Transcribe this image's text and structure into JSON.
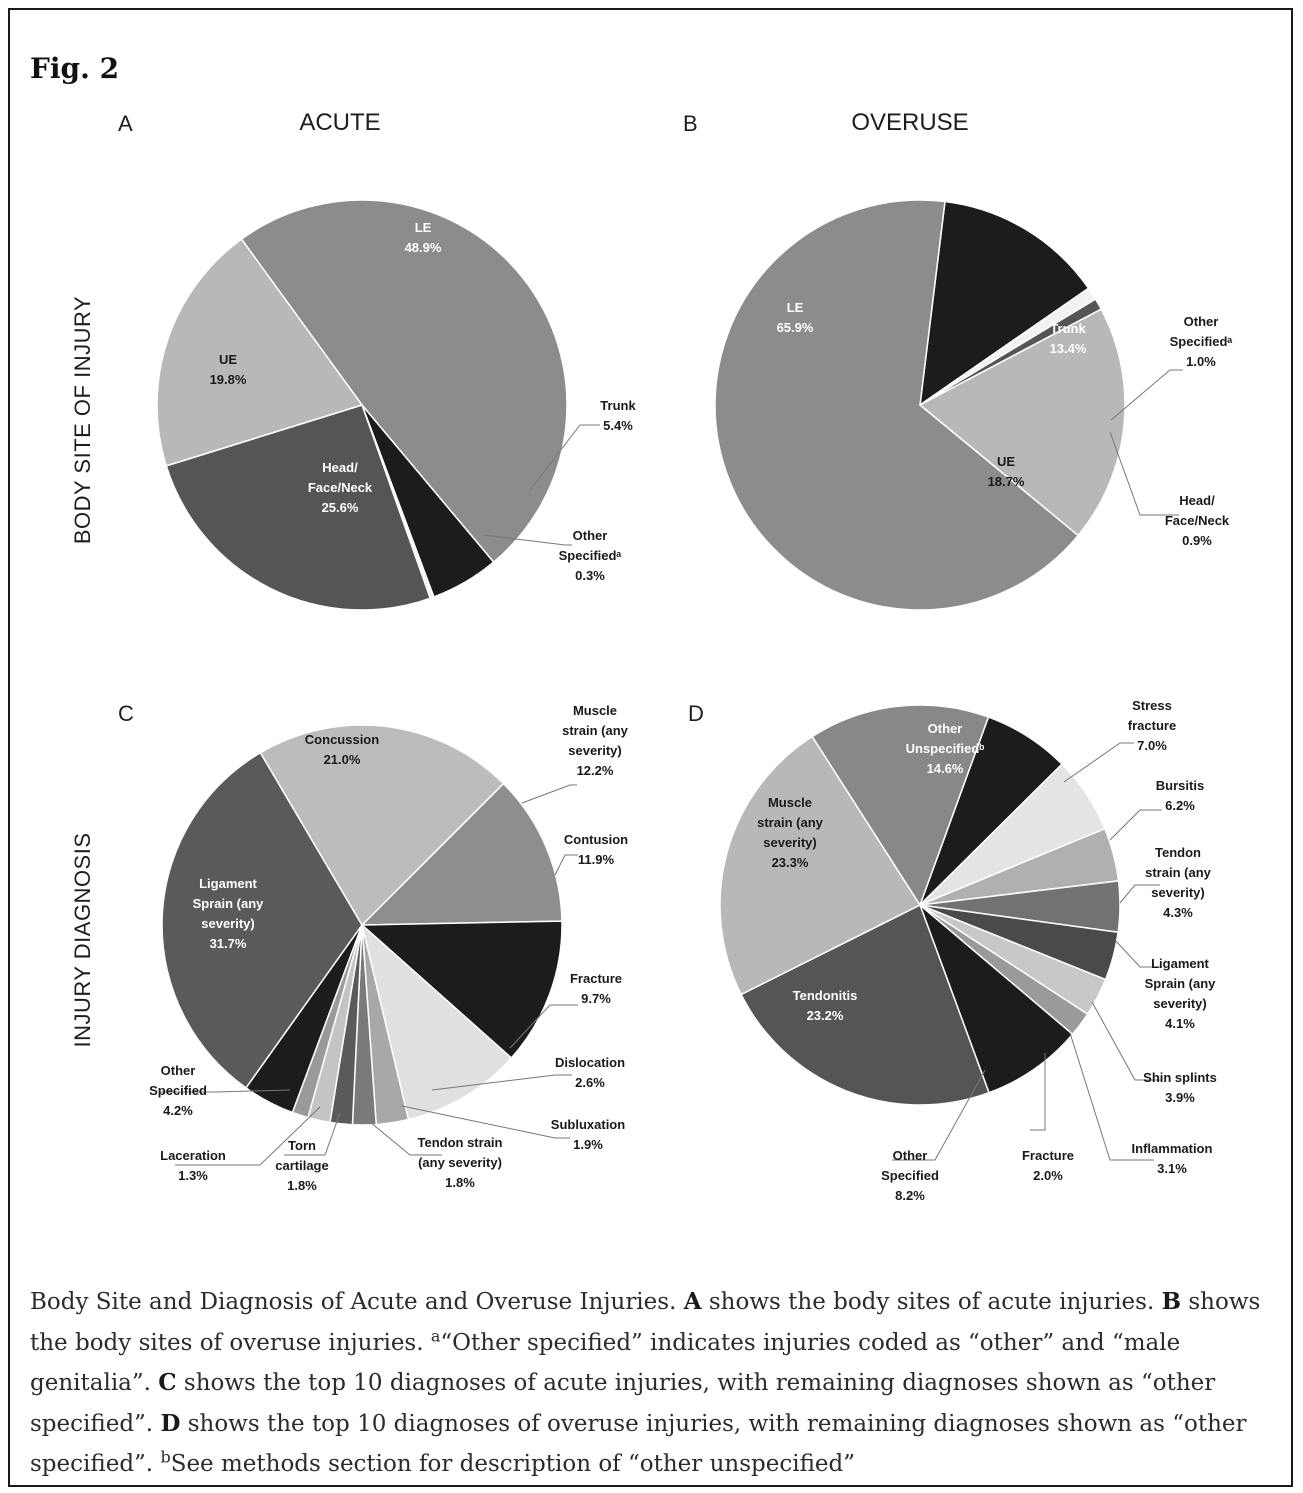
{
  "figure": {
    "title": "Fig. 2",
    "row_titles": [
      "BODY SITE OF INJURY",
      "INJURY DIAGNOSIS"
    ]
  },
  "chart_data": [
    {
      "type": "pie",
      "panel": "A",
      "title": "ACUTE",
      "slices": [
        {
          "label": [
            "LE"
          ],
          "value": 48.9,
          "display": "48.9%",
          "color": "#8c8c8c"
        },
        {
          "label": [
            "Trunk"
          ],
          "value": 5.4,
          "display": "5.4%",
          "color": "#1c1c1c"
        },
        {
          "label": [
            "Other",
            "Specifiedᵃ"
          ],
          "value": 0.3,
          "display": "0.3%",
          "color": "#f2f2f2"
        },
        {
          "label": [
            "Head/",
            "Face/Neck"
          ],
          "value": 25.6,
          "display": "25.6%",
          "color": "#555555"
        },
        {
          "label": [
            "UE"
          ],
          "value": 19.8,
          "display": "19.8%",
          "color": "#b8b8b8"
        }
      ]
    },
    {
      "type": "pie",
      "panel": "B",
      "title": "OVERUSE",
      "slices": [
        {
          "label": [
            "Trunk"
          ],
          "value": 13.4,
          "display": "13.4%",
          "color": "#1c1c1c"
        },
        {
          "label": [
            "Other",
            "Specifiedᵃ"
          ],
          "value": 1.0,
          "display": "1.0%",
          "color": "#f2f2f2"
        },
        {
          "label": [
            "Head/",
            "Face/Neck"
          ],
          "value": 0.9,
          "display": "0.9%",
          "color": "#555555"
        },
        {
          "label": [
            "UE"
          ],
          "value": 18.7,
          "display": "18.7%",
          "color": "#b8b8b8"
        },
        {
          "label": [
            "LE"
          ],
          "value": 65.9,
          "display": "65.9%",
          "color": "#8c8c8c"
        }
      ]
    },
    {
      "type": "pie",
      "panel": "C",
      "title": "",
      "slices": [
        {
          "label": [
            "Muscle",
            "strain (any",
            "severity)"
          ],
          "value": 12.2,
          "display": "12.2%",
          "color": "#8e8e8e"
        },
        {
          "label": [
            "Contusion"
          ],
          "value": 11.9,
          "display": "11.9%",
          "color": "#1c1c1c"
        },
        {
          "label": [
            "Fracture"
          ],
          "value": 9.7,
          "display": "9.7%",
          "color": "#e0e0e0"
        },
        {
          "label": [
            "Dislocation"
          ],
          "value": 2.6,
          "display": "2.6%",
          "color": "#a8a8a8"
        },
        {
          "label": [
            "Subluxation"
          ],
          "value": 1.9,
          "display": "1.9%",
          "color": "#7a7a7a"
        },
        {
          "label": [
            "Tendon strain",
            "(any severity)"
          ],
          "value": 1.8,
          "display": "1.8%",
          "color": "#5a5a5a"
        },
        {
          "label": [
            "Torn",
            "cartilage"
          ],
          "value": 1.8,
          "display": "1.8%",
          "color": "#c4c4c4"
        },
        {
          "label": [
            "Laceration"
          ],
          "value": 1.3,
          "display": "1.3%",
          "color": "#9a9a9a"
        },
        {
          "label": [
            "Other",
            "Specified"
          ],
          "value": 4.2,
          "display": "4.2%",
          "color": "#1c1c1c"
        },
        {
          "label": [
            "Ligament",
            "Sprain (any",
            "severity)"
          ],
          "value": 31.7,
          "display": "31.7%",
          "color": "#5a5a5a"
        },
        {
          "label": [
            "Concussion"
          ],
          "value": 21.0,
          "display": "21.0%",
          "color": "#bcbcbc"
        }
      ]
    },
    {
      "type": "pie",
      "panel": "D",
      "title": "",
      "slices": [
        {
          "label": [
            "Stress",
            "fracture"
          ],
          "value": 7.0,
          "display": "7.0%",
          "color": "#1c1c1c"
        },
        {
          "label": [
            "Bursitis"
          ],
          "value": 6.2,
          "display": "6.2%",
          "color": "#e4e4e4"
        },
        {
          "label": [
            "Tendon",
            "strain (any",
            "severity)"
          ],
          "value": 4.3,
          "display": "4.3%",
          "color": "#b0b0b0"
        },
        {
          "label": [
            "Ligament",
            "Sprain (any",
            "severity)"
          ],
          "value": 4.1,
          "display": "4.1%",
          "color": "#727272"
        },
        {
          "label": [
            "Shin splints"
          ],
          "value": 3.9,
          "display": "3.9%",
          "color": "#4a4a4a"
        },
        {
          "label": [
            "Inflammation"
          ],
          "value": 3.1,
          "display": "3.1%",
          "color": "#c8c8c8"
        },
        {
          "label": [
            "Fracture"
          ],
          "value": 2.0,
          "display": "2.0%",
          "color": "#9a9a9a"
        },
        {
          "label": [
            "Other",
            "Specified"
          ],
          "value": 8.2,
          "display": "8.2%",
          "color": "#1c1c1c"
        },
        {
          "label": [
            "Tendonitis"
          ],
          "value": 23.2,
          "display": "23.2%",
          "color": "#555555"
        },
        {
          "label": [
            "Muscle",
            "strain (any",
            "severity)"
          ],
          "value": 23.3,
          "display": "23.3%",
          "color": "#b8b8b8"
        },
        {
          "label": [
            "Other",
            "Unspecifiedᵇ"
          ],
          "value": 14.6,
          "display": "14.6%",
          "color": "#888888"
        }
      ]
    }
  ],
  "caption": {
    "t1": "Body Site and Diagnosis of Acute and Overuse Injuries. ",
    "b1": "A",
    "t2": " shows the body sites of acute injuries. ",
    "b2": "B",
    "t3": " shows the body sites of overuse injuries. ",
    "sup_a": "a",
    "t4": "“Other specified” indicates injuries coded as “other” and “male genitalia”. ",
    "b3": "C",
    "t5": " shows the top 10 diagnoses of acute injuries, with remaining diagnoses shown as “other specified”. ",
    "b4": "D",
    "t6": " shows the top 10 diagnoses of overuse injuries, with remaining diagnoses shown as “other specified”. ",
    "sup_b": "b",
    "t7": "See methods section for description of “other unspecified”"
  }
}
